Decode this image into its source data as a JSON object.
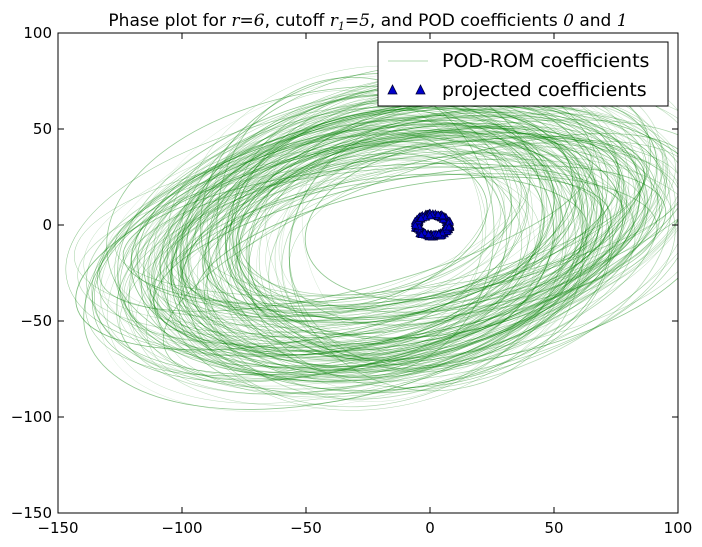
{
  "chart_data": {
    "type": "line",
    "title": {
      "pre": "Phase plot for ",
      "m1": "r",
      "eq1": "=",
      "v1": "6",
      "mid1": ", cutoff ",
      "m2": "r",
      "m2sub": "1",
      "eq2": "=",
      "v2": "5",
      "mid2": ", and POD coefficients ",
      "v3": "0",
      "mid3": " and ",
      "v4": "1"
    },
    "xlim": [
      -150,
      100
    ],
    "ylim": [
      -150,
      100
    ],
    "x_ticks": [
      -150,
      -100,
      -50,
      0,
      50,
      100
    ],
    "y_ticks": [
      -150,
      -100,
      -50,
      0,
      50,
      100
    ],
    "x_tick_labels": [
      "−150",
      "−100",
      "−50",
      "0",
      "50",
      "100"
    ],
    "y_tick_labels": [
      "−150",
      "−100",
      "−50",
      "0",
      "50",
      "100"
    ],
    "grid": false,
    "legend_position": "top-right",
    "colors": {
      "pod_rom": "#008000",
      "projected_fill": "#0000cc",
      "projected_edge": "#000033"
    },
    "series": [
      {
        "name": "POD-ROM coefficients",
        "type": "line",
        "description_points": "dense set of elliptical phase orbits",
        "center": [
          -15,
          -5
        ],
        "radius_x_range": [
          55,
          120
        ],
        "radius_y_range": [
          35,
          80
        ],
        "rotation_deg_range": [
          -20,
          -5
        ]
      },
      {
        "name": "projected coefficients",
        "type": "scatter",
        "marker": "triangle",
        "center": [
          1,
          0
        ],
        "radius_x": 7,
        "radius_y": 7
      }
    ]
  }
}
